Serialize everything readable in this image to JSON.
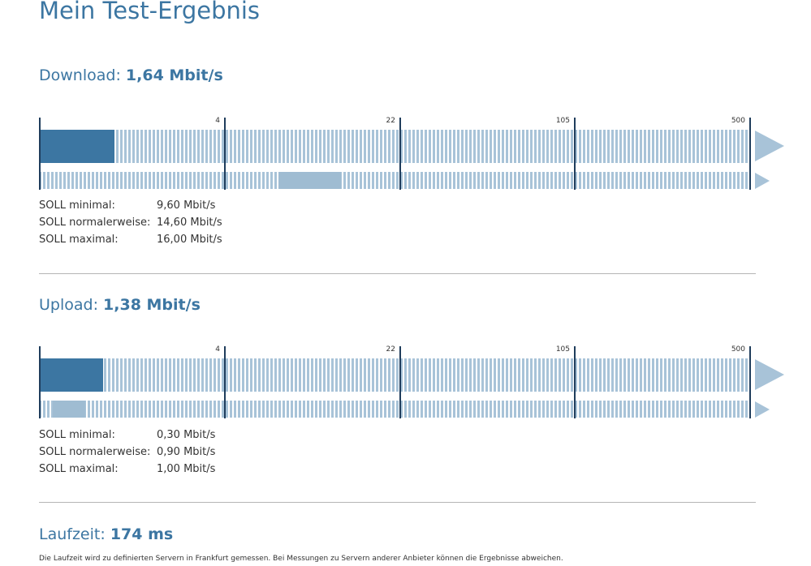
{
  "page": {
    "title": "Mein Test-Ergebnis"
  },
  "scale": {
    "ticks": [
      "4",
      "22",
      "105",
      "500"
    ]
  },
  "colors": {
    "accent": "#3c76a2",
    "range": "#9fbcd2",
    "track": "#a8c3d8",
    "tick": "#1f3d5c"
  },
  "download": {
    "label": "Download:",
    "value": "1,64 Mbit/s",
    "measured_mbit": 1.64,
    "soll_range_mbit": [
      9.6,
      16.0
    ],
    "soll": [
      {
        "label": "SOLL minimal:",
        "value": "9,60 Mbit/s"
      },
      {
        "label": "SOLL normalerweise:",
        "value": "14,60 Mbit/s"
      },
      {
        "label": "SOLL maximal:",
        "value": "16,00 Mbit/s"
      }
    ]
  },
  "upload": {
    "label": "Upload:",
    "value": "1,38 Mbit/s",
    "measured_mbit": 1.38,
    "soll_range_mbit": [
      0.3,
      1.0
    ],
    "soll": [
      {
        "label": "SOLL minimal:",
        "value": "0,30 Mbit/s"
      },
      {
        "label": "SOLL normalerweise:",
        "value": "0,90 Mbit/s"
      },
      {
        "label": "SOLL maximal:",
        "value": "1,00 Mbit/s"
      }
    ]
  },
  "latency": {
    "label": "Laufzeit:",
    "value": "174 ms"
  },
  "footnote": "Die Laufzeit wird zu definierten Servern in Frankfurt gemessen. Bei Messungen zu Servern anderer Anbieter können die Ergebnisse abweichen."
}
